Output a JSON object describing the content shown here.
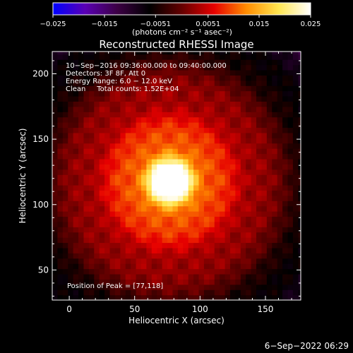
{
  "chart_data": {
    "type": "heatmap",
    "title": "Reconstructed RHESSI Image",
    "xlabel": "Heliocentric X (arcsec)",
    "ylabel": "Heliocentric Y (arcsec)",
    "xlim": [
      -13,
      177
    ],
    "ylim": [
      27,
      217
    ],
    "x_ticks": [
      0,
      50,
      100,
      150
    ],
    "y_ticks": [
      50,
      100,
      150,
      200
    ],
    "colorbar": {
      "range": [
        -0.025,
        0.025
      ],
      "ticks": [
        "−0.025",
        "−0.015",
        "−0.0051",
        "0.0051",
        "0.015",
        "0.025"
      ],
      "tick_values": [
        -0.025,
        -0.015,
        -0.0051,
        0.0051,
        0.015,
        0.025
      ],
      "label": "(photons cm⁻² s⁻¹ asec⁻²)",
      "colors": [
        "#0000ff",
        "#5a00b4",
        "#3c0044",
        "#000000",
        "#640000",
        "#e60000",
        "#ff8c00",
        "#ffe650",
        "#ffffff"
      ]
    },
    "annotations": [
      "10−Sep−2016 09:36:00.000 to 09:40:00.000",
      "Detectors: 3F 8F, Att 0",
      "Energy Range: 6.0 − 12.0 keV",
      "Clean     Total counts: 1.52E+04",
      "Position of Peak = [77,118]"
    ],
    "peak": [
      77,
      118
    ],
    "source_sigma_arcsec": 12,
    "timestamp": "6−Sep−2022 06:29"
  }
}
